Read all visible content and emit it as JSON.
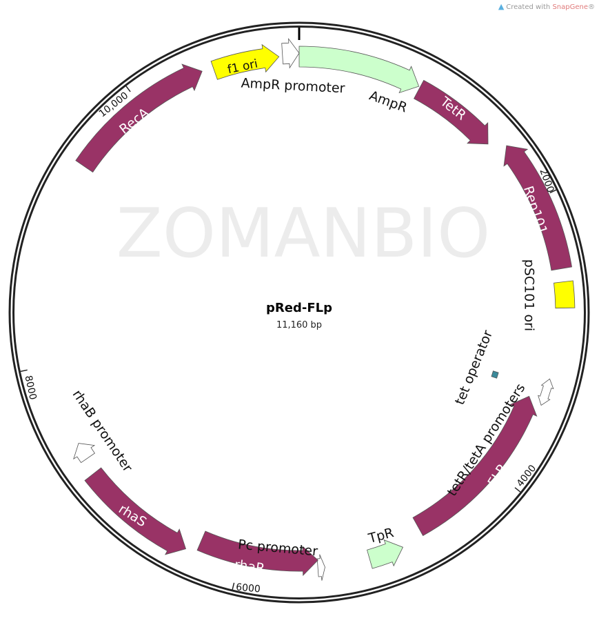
{
  "credit": {
    "prefix": "Created with ",
    "brand": "SnapGene",
    "suffix": "®",
    "icon": "snapgene-logo-icon"
  },
  "watermark": "ZOMANBIO",
  "plasmid": {
    "name": "pRed-FLp",
    "length_label": "11,160 bp",
    "length_bp": 11160
  },
  "ticks": [
    {
      "bp": 2000,
      "label": "2000"
    },
    {
      "bp": 4000,
      "label": "4000"
    },
    {
      "bp": 6000,
      "label": "6000"
    },
    {
      "bp": 8000,
      "label": "8000"
    },
    {
      "bp": 10000,
      "label": "10,000"
    }
  ],
  "colors": {
    "cds": "#993366",
    "origin": "#ffff00",
    "marker": "#ccffcc",
    "promoter": "#ffffff",
    "operator": "#3b8a9a"
  },
  "features": [
    {
      "name": "f1 ori",
      "start": 10560,
      "end": 11020,
      "direction": "forward",
      "type": "origin"
    },
    {
      "name": "AmpR promoter",
      "start": 11045,
      "end": 11160,
      "direction": "forward",
      "type": "promoter"
    },
    {
      "name": "AmpR",
      "start": 0,
      "end": 865,
      "direction": "forward",
      "type": "marker"
    },
    {
      "name": "TetR",
      "start": 875,
      "end": 1497,
      "direction": "forward",
      "type": "cds"
    },
    {
      "name": "Rep101",
      "start": 1587,
      "end": 2496,
      "direction": "reverse",
      "type": "cds"
    },
    {
      "name": "pSC101 ori",
      "start": 2585,
      "end": 2760,
      "direction": "none",
      "type": "origin"
    },
    {
      "name": "tet operator",
      "start": 3310,
      "end": 3360,
      "direction": "none",
      "type": "operator"
    },
    {
      "name": "tetR/tetA promoters",
      "start": 3250,
      "end": 3440,
      "direction": "both",
      "type": "promoter"
    },
    {
      "name": "FLP",
      "start": 3410,
      "end": 4680,
      "direction": "reverse",
      "type": "cds"
    },
    {
      "name": "TpR",
      "start": 4840,
      "end": 5085,
      "direction": "reverse",
      "type": "marker"
    },
    {
      "name": "Pc promoter",
      "start": 5400,
      "end": 5450,
      "direction": "reverse",
      "type": "promoter"
    },
    {
      "name": "rhaR",
      "start": 5445,
      "end": 6300,
      "direction": "reverse",
      "type": "cds"
    },
    {
      "name": "rhaS",
      "start": 6375,
      "end": 7190,
      "direction": "reverse",
      "type": "cds"
    },
    {
      "name": "rhaB promoter",
      "start": 7300,
      "end": 7420,
      "direction": "forward",
      "type": "promoter"
    },
    {
      "name": "RecA",
      "start": 9430,
      "end": 10480,
      "direction": "forward",
      "type": "cds"
    }
  ]
}
